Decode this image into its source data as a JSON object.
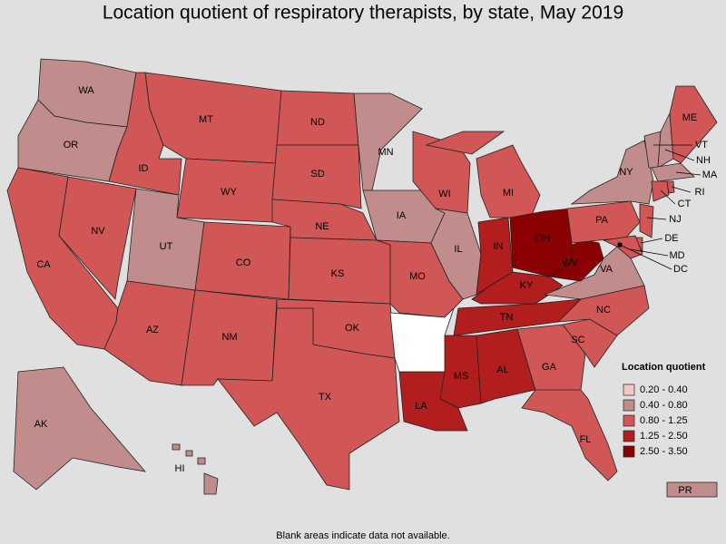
{
  "title": "Location quotient of respiratory therapists, by state, May 2019",
  "legend": {
    "title": "Location quotient",
    "items": [
      {
        "label": "0.20 - 0.40",
        "color": "#f5c8c8"
      },
      {
        "label": "0.40 - 0.80",
        "color": "#c08c8c"
      },
      {
        "label": "0.80 - 1.25",
        "color": "#d15656"
      },
      {
        "label": "1.25 - 2.50",
        "color": "#b21e1e"
      },
      {
        "label": "2.50 - 3.50",
        "color": "#8b0000"
      }
    ]
  },
  "blank_color": "#ffffff",
  "states": [
    {
      "abbr": "WA",
      "range": "0.40 - 0.80"
    },
    {
      "abbr": "OR",
      "range": "0.40 - 0.80"
    },
    {
      "abbr": "CA",
      "range": "0.80 - 1.25"
    },
    {
      "abbr": "NV",
      "range": "0.80 - 1.25"
    },
    {
      "abbr": "ID",
      "range": "0.80 - 1.25"
    },
    {
      "abbr": "MT",
      "range": "0.80 - 1.25"
    },
    {
      "abbr": "WY",
      "range": "0.80 - 1.25"
    },
    {
      "abbr": "UT",
      "range": "0.40 - 0.80"
    },
    {
      "abbr": "CO",
      "range": "0.80 - 1.25"
    },
    {
      "abbr": "AZ",
      "range": "0.80 - 1.25"
    },
    {
      "abbr": "NM",
      "range": "0.80 - 1.25"
    },
    {
      "abbr": "ND",
      "range": "0.80 - 1.25"
    },
    {
      "abbr": "SD",
      "range": "0.80 - 1.25"
    },
    {
      "abbr": "NE",
      "range": "0.80 - 1.25"
    },
    {
      "abbr": "KS",
      "range": "0.80 - 1.25"
    },
    {
      "abbr": "OK",
      "range": "0.80 - 1.25"
    },
    {
      "abbr": "TX",
      "range": "0.80 - 1.25"
    },
    {
      "abbr": "MN",
      "range": "0.40 - 0.80"
    },
    {
      "abbr": "IA",
      "range": "0.40 - 0.80"
    },
    {
      "abbr": "MO",
      "range": "0.80 - 1.25"
    },
    {
      "abbr": "WI",
      "range": "0.80 - 1.25"
    },
    {
      "abbr": "IL",
      "range": "0.40 - 0.80"
    },
    {
      "abbr": "MI",
      "range": "0.80 - 1.25"
    },
    {
      "abbr": "IN",
      "range": "1.25 - 2.50"
    },
    {
      "abbr": "OH",
      "range": "2.50 - 3.50"
    },
    {
      "abbr": "KY",
      "range": "1.25 - 2.50"
    },
    {
      "abbr": "TN",
      "range": "1.25 - 2.50"
    },
    {
      "abbr": "MS",
      "range": "1.25 - 2.50"
    },
    {
      "abbr": "AL",
      "range": "1.25 - 2.50"
    },
    {
      "abbr": "LA",
      "range": "1.25 - 2.50"
    },
    {
      "abbr": null,
      "range": null
    },
    {
      "abbr": "GA",
      "range": "0.80 - 1.25"
    },
    {
      "abbr": "FL",
      "range": "0.80 - 1.25"
    },
    {
      "abbr": "SC",
      "range": "0.80 - 1.25"
    },
    {
      "abbr": "NC",
      "range": "0.80 - 1.25"
    },
    {
      "abbr": "VA",
      "range": "0.40 - 0.80"
    },
    {
      "abbr": "WV",
      "range": "2.50 - 3.50"
    },
    {
      "abbr": "PA",
      "range": "0.80 - 1.25"
    },
    {
      "abbr": "NY",
      "range": "0.40 - 0.80"
    },
    {
      "abbr": "VT",
      "range": "0.40 - 0.80"
    },
    {
      "abbr": "NH",
      "range": "0.40 - 0.80"
    },
    {
      "abbr": "ME",
      "range": "0.80 - 1.25"
    },
    {
      "abbr": "MA",
      "range": "0.40 - 0.80"
    },
    {
      "abbr": "CT",
      "range": "0.80 - 1.25"
    },
    {
      "abbr": "RI",
      "range": "0.80 - 1.25"
    },
    {
      "abbr": "NJ",
      "range": "0.80 - 1.25"
    },
    {
      "abbr": "DE",
      "range": "0.80 - 1.25"
    },
    {
      "abbr": "MD",
      "range": "0.80 - 1.25"
    },
    {
      "abbr": "DC",
      "range": "0.40 - 0.80"
    },
    {
      "abbr": "AK",
      "range": "0.40 - 0.80"
    },
    {
      "abbr": "HI",
      "range": "0.40 - 0.80"
    },
    {
      "abbr": "PR",
      "range": "0.40 - 0.80"
    }
  ],
  "note": "Blank areas indicate data not available."
}
